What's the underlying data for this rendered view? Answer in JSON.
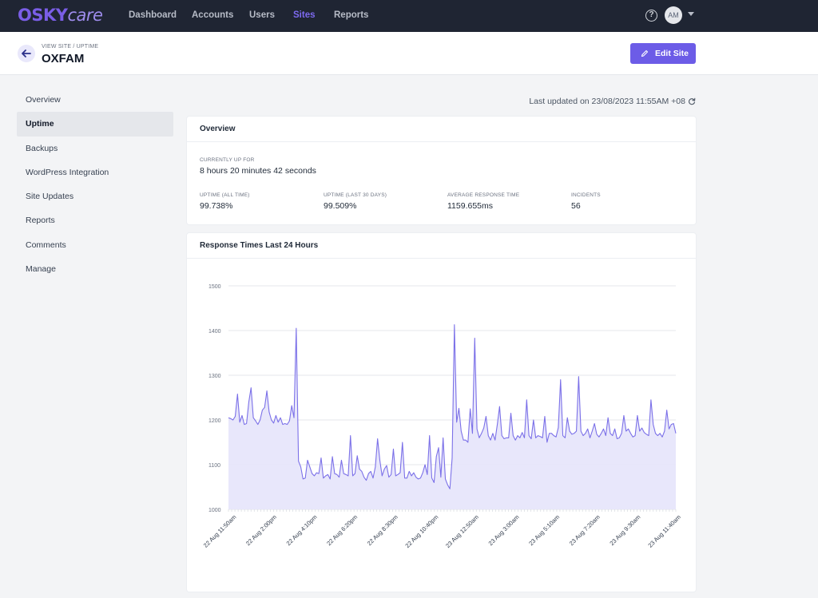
{
  "nav": {
    "logo_osky": "OSKY",
    "logo_care": "care",
    "links": [
      {
        "label": "Dashboard",
        "active": false
      },
      {
        "label": "Accounts",
        "active": false
      },
      {
        "label": "Users",
        "active": false
      },
      {
        "label": "Sites",
        "active": true
      },
      {
        "label": "Reports",
        "active": false
      }
    ],
    "help_icon": "?",
    "avatar_initials": "AM"
  },
  "header": {
    "breadcrumb": "VIEW SITE / UPTIME",
    "title": "OXFAM",
    "edit_label": "Edit Site"
  },
  "sidebar": {
    "items": [
      {
        "label": "Overview",
        "active": false
      },
      {
        "label": "Uptime",
        "active": true
      },
      {
        "label": "Backups",
        "active": false
      },
      {
        "label": "WordPress Integration",
        "active": false
      },
      {
        "label": "Site Updates",
        "active": false
      },
      {
        "label": "Reports",
        "active": false
      },
      {
        "label": "Comments",
        "active": false
      },
      {
        "label": "Manage",
        "active": false
      }
    ]
  },
  "main": {
    "last_updated": "Last updated on 23/08/2023 11:55AM +08"
  },
  "overview": {
    "title": "Overview",
    "up_label": "CURRENTLY UP FOR",
    "up_value": "8 hours 20 minutes 42 seconds",
    "stats": [
      {
        "label": "UPTIME (ALL TIME)",
        "value": "99.738%"
      },
      {
        "label": "UPTIME (LAST 30 DAYS)",
        "value": "99.509%"
      },
      {
        "label": "AVERAGE RESPONSE TIME",
        "value": "1159.655ms"
      },
      {
        "label": "INCIDENTS",
        "value": "56"
      }
    ]
  },
  "colors": {
    "accent": "#6c5ce7",
    "nav_bg": "#1f2533",
    "line": "#7b70e8",
    "fill": "#e6e4fb"
  },
  "chart_data": {
    "type": "area",
    "title": "Response Times Last 24 Hours",
    "ylim": [
      1000,
      1500
    ],
    "yticks": [
      1000,
      1100,
      1200,
      1300,
      1400,
      1500
    ],
    "grid": true,
    "legend": "none",
    "xtick_labels": [
      "22 Aug 11:50am",
      "22 Aug 2:00pm",
      "22 Aug 4:10pm",
      "22 Aug 6:20pm",
      "22 Aug 8:30pm",
      "22 Aug 10:40pm",
      "23 Aug 12:50am",
      "23 Aug 3:00am",
      "23 Aug 5:10am",
      "23 Aug 7:20am",
      "23 Aug 9:30am",
      "23 Aug 11:40am"
    ],
    "series": [
      {
        "values": [
          1205,
          1203,
          1200,
          1208,
          1258,
          1195,
          1210,
          1190,
          1192,
          1240,
          1272,
          1205,
          1198,
          1190,
          1200,
          1222,
          1228,
          1265,
          1218,
          1200,
          1193,
          1210,
          1195,
          1205,
          1190,
          1192,
          1190,
          1198,
          1232,
          1205,
          1405,
          1108,
          1095,
          1068,
          1070,
          1110,
          1095,
          1080,
          1075,
          1082,
          1080,
          1115,
          1070,
          1075,
          1078,
          1068,
          1118,
          1080,
          1078,
          1072,
          1110,
          1080,
          1078,
          1075,
          1165,
          1075,
          1080,
          1120,
          1090,
          1085,
          1072,
          1065,
          1080,
          1085,
          1070,
          1095,
          1158,
          1110,
          1075,
          1090,
          1098,
          1072,
          1078,
          1135,
          1075,
          1078,
          1082,
          1150,
          1070,
          1070,
          1085,
          1075,
          1082,
          1072,
          1068,
          1070,
          1082,
          1100,
          1078,
          1165,
          1070,
          1060,
          1118,
          1138,
          1072,
          1160,
          1068,
          1055,
          1046,
          1115,
          1413,
          1195,
          1226,
          1175,
          1155,
          1155,
          1150,
          1225,
          1170,
          1383,
          1180,
          1160,
          1170,
          1182,
          1208,
          1165,
          1155,
          1170,
          1155,
          1190,
          1230,
          1165,
          1158,
          1160,
          1160,
          1215,
          1165,
          1155,
          1165,
          1160,
          1172,
          1160,
          1245,
          1165,
          1158,
          1200,
          1160,
          1165,
          1163,
          1160,
          1208,
          1150,
          1170,
          1170,
          1165,
          1162,
          1183,
          1290,
          1165,
          1160,
          1205,
          1175,
          1168,
          1170,
          1175,
          1297,
          1175,
          1165,
          1170,
          1180,
          1160,
          1175,
          1192,
          1168,
          1162,
          1170,
          1180,
          1165,
          1205,
          1170,
          1165,
          1180,
          1158,
          1160,
          1170,
          1210,
          1175,
          1180,
          1170,
          1162,
          1165,
          1210,
          1175,
          1182,
          1172,
          1168,
          1165,
          1245,
          1190,
          1170,
          1165,
          1170,
          1162,
          1175,
          1222,
          1180,
          1190,
          1192,
          1170
        ]
      }
    ]
  }
}
